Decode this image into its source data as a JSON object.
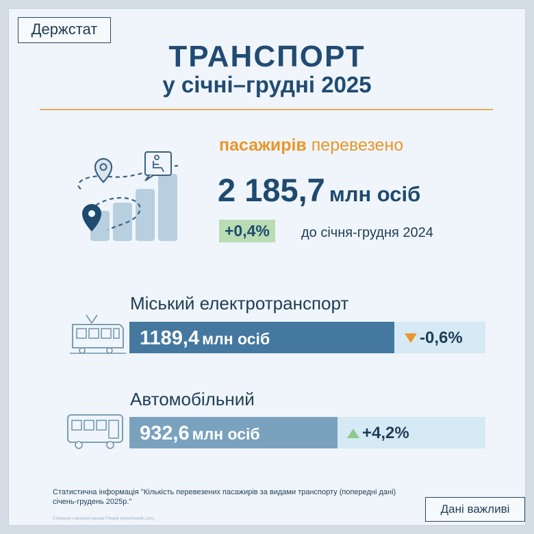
{
  "brand": "Держстат",
  "header": {
    "title": "ТРАНСПОРТ",
    "subtitle": "у січні–грудні 2025"
  },
  "summary": {
    "label_bold": "пасажирів",
    "label_rest": "перевезено",
    "value": "2 185,7",
    "unit": "млн осіб",
    "change": "+0,4%",
    "change_text": "до січня-грудня 2024"
  },
  "categories": [
    {
      "title": "Міський електротранспорт",
      "value": "1189,4",
      "unit": "млн осіб",
      "delta": "-0,6%",
      "trend": "down",
      "bar_share": 0.745,
      "icon": "tram-icon"
    },
    {
      "title": "Автомобільний",
      "value": "932,6",
      "unit": "млн осіб",
      "delta": "+4,2%",
      "trend": "up",
      "bar_share": 0.585,
      "icon": "bus-icon"
    }
  ],
  "footer": {
    "note": "Статистична інформація \"Кількість перевезених пасажирів за видами транспорту (попередні дані) січень-грудень 2025р.\"",
    "credit": "Створено з використанням Freepik (www.freepik.com)",
    "important": "Дані важливі"
  },
  "colors": {
    "background": "#eff5fa",
    "primary": "#1f4a6f",
    "accent": "#e9962a",
    "positive": "#8fc88b",
    "tram_bar": "#44789f",
    "bus_bar": "#7aa2bf",
    "bar_track": "#d6eaf5"
  }
}
